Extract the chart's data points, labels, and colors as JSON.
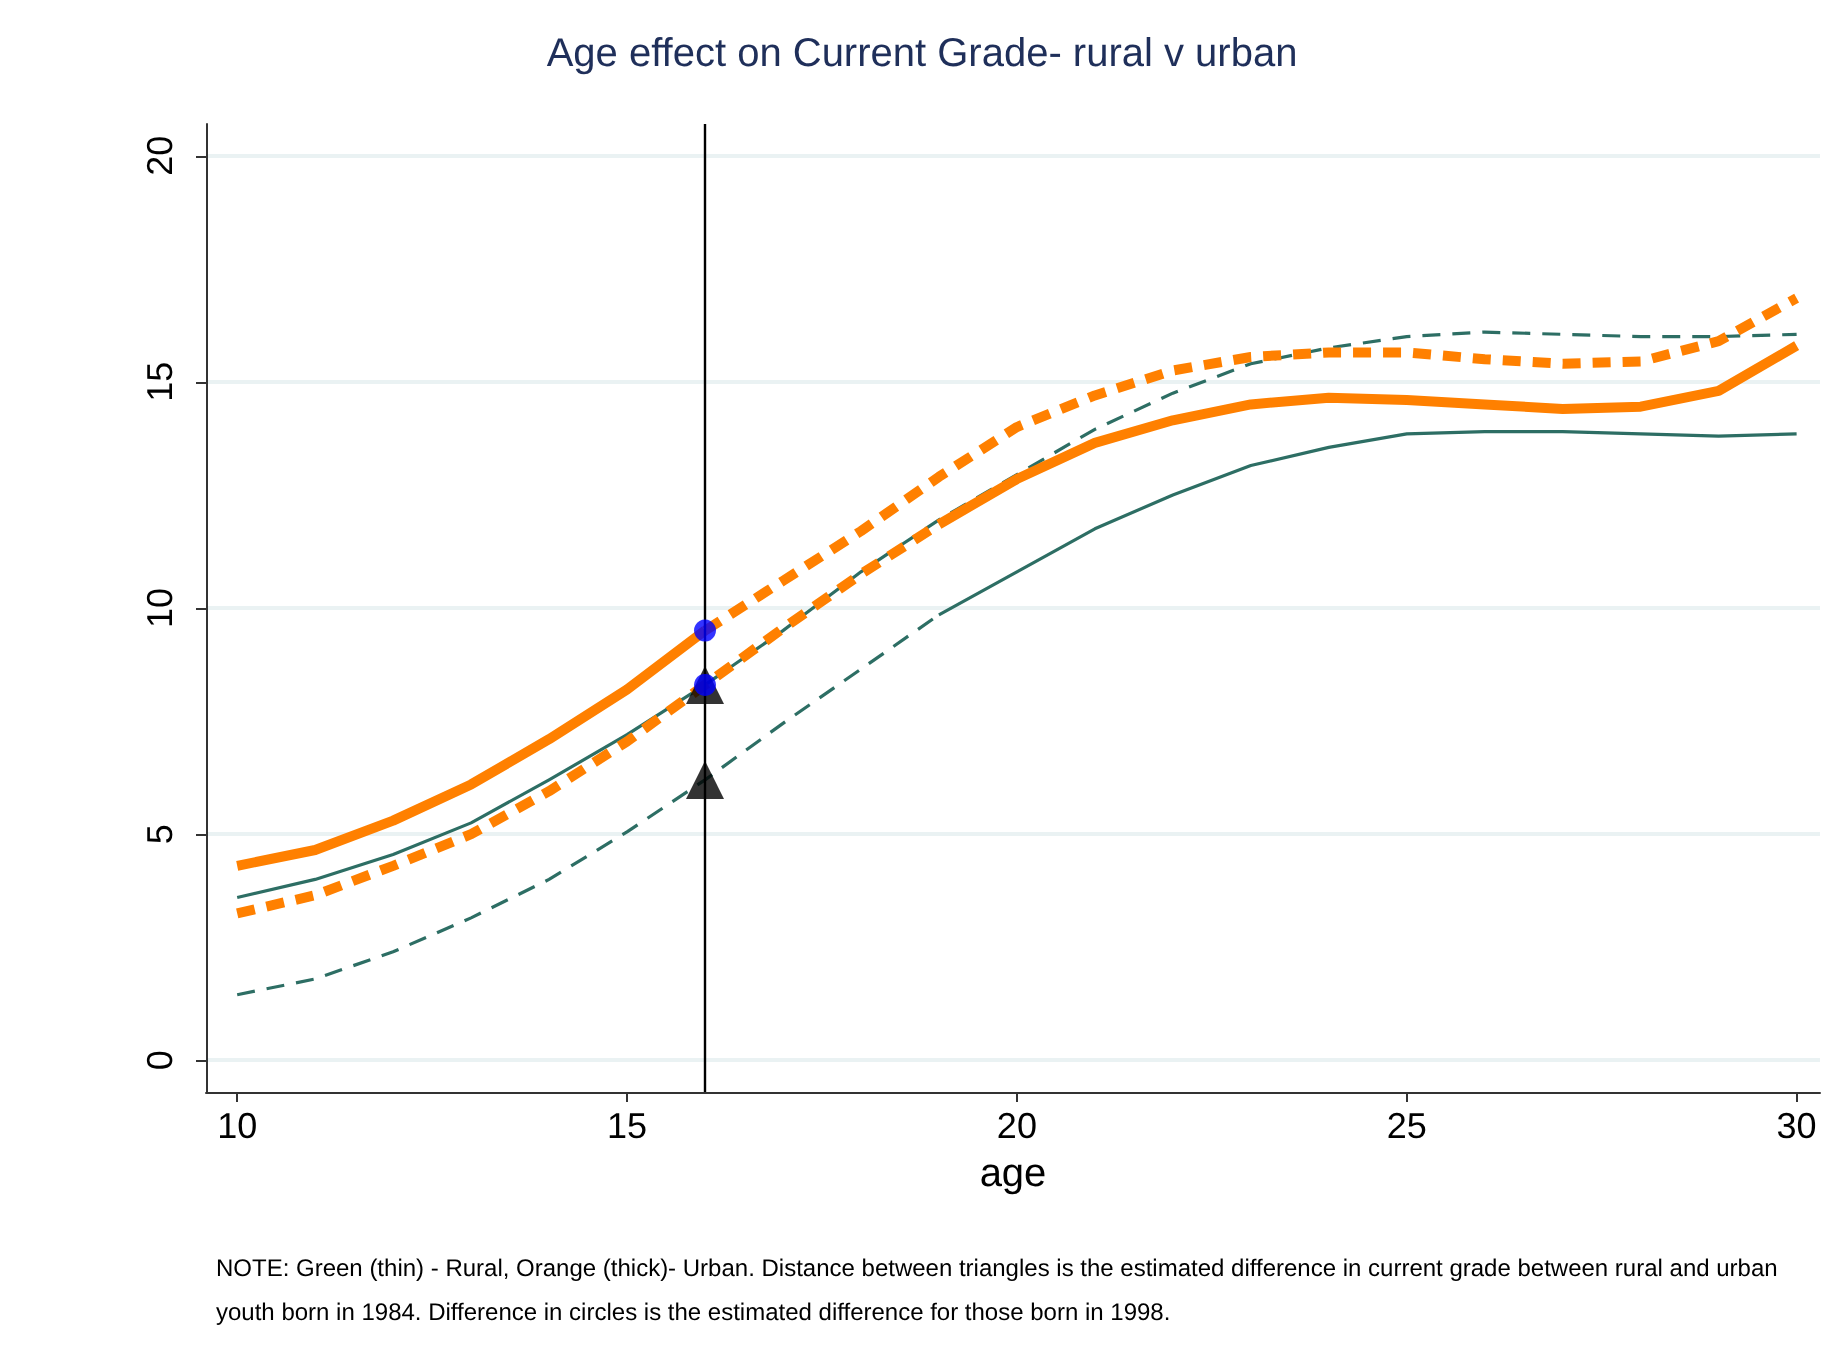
{
  "chart_data": {
    "type": "line",
    "title": "Age effect on Current Grade- rural v urban",
    "xlabel": "age",
    "annotations": [
      "NOTE: Green (thin) - Rural, Orange (thick)- Urban. Distance between triangles is the estimated difference in current grade between rural and urban youth born in 1984. Difference in circles is the estimated difference for those born in 1998."
    ],
    "xlim": [
      9.6,
      30.3
    ],
    "xticks": [
      10,
      15,
      20,
      25,
      30
    ],
    "ylim": [
      -0.7,
      20.7
    ],
    "yticks": [
      0,
      5,
      10,
      15,
      20
    ],
    "grid": "y",
    "marker": "none",
    "ref_lines": [
      {
        "axis": "x",
        "value": 16,
        "color": "#000000"
      }
    ],
    "series": [
      {
        "color": "#2d6e64",
        "line_style": "solid",
        "x": [
          10,
          11,
          12,
          13,
          14,
          15,
          16
        ],
        "values": [
          3.6,
          4.0,
          4.55,
          5.25,
          6.2,
          7.2,
          8.3
        ]
      },
      {
        "color": "#2d6e64",
        "line_style": "dashed",
        "x": [
          16,
          17,
          18,
          19,
          20,
          21,
          22,
          23,
          24,
          25,
          26,
          27,
          28,
          29,
          30
        ],
        "values": [
          8.3,
          9.5,
          10.8,
          11.95,
          12.95,
          13.95,
          14.75,
          15.4,
          15.75,
          16.0,
          16.1,
          16.05,
          16.0,
          16.0,
          16.05
        ]
      },
      {
        "color": "#2d6e64",
        "line_style": "dashed",
        "x": [
          10,
          11,
          12,
          13,
          14,
          15,
          16,
          17,
          18,
          19
        ],
        "values": [
          1.45,
          1.8,
          2.4,
          3.15,
          4.0,
          5.05,
          6.2,
          7.45,
          8.65,
          9.85
        ]
      },
      {
        "color": "#2d6e64",
        "line_style": "solid",
        "x": [
          19,
          20,
          21,
          22,
          23,
          24,
          25,
          26,
          27,
          28,
          29,
          30
        ],
        "values": [
          9.85,
          10.8,
          11.75,
          12.5,
          13.15,
          13.55,
          13.85,
          13.9,
          13.9,
          13.85,
          13.8,
          13.85
        ]
      },
      {
        "color": "#ff8000",
        "line_style": "solid",
        "x": [
          10,
          11,
          12,
          13,
          14,
          15,
          16
        ],
        "values": [
          4.3,
          4.65,
          5.3,
          6.1,
          7.1,
          8.2,
          9.5
        ]
      },
      {
        "color": "#ff8000",
        "line_style": "dashed",
        "x": [
          16,
          17,
          18,
          19,
          20,
          21,
          22,
          23,
          24,
          25,
          26,
          27,
          28,
          29,
          30
        ],
        "values": [
          9.5,
          10.6,
          11.7,
          12.9,
          14.0,
          14.7,
          15.25,
          15.55,
          15.65,
          15.65,
          15.5,
          15.4,
          15.45,
          15.9,
          16.85
        ]
      },
      {
        "color": "#ff8000",
        "line_style": "dashed",
        "x": [
          10,
          11,
          12,
          13,
          14,
          15,
          16,
          17,
          18,
          19
        ],
        "values": [
          3.25,
          3.65,
          4.3,
          5.0,
          5.95,
          7.05,
          8.3,
          9.55,
          10.75,
          11.85
        ]
      },
      {
        "color": "#ff8000",
        "line_style": "solid",
        "x": [
          19,
          20,
          21,
          22,
          23,
          24,
          25,
          26,
          27,
          28,
          29,
          30
        ],
        "values": [
          11.85,
          12.85,
          13.65,
          14.15,
          14.5,
          14.65,
          14.6,
          14.5,
          14.4,
          14.45,
          14.8,
          15.8
        ]
      },
      {
        "type": "scatter",
        "marker": "triangle",
        "color": "#000000",
        "x": [
          16,
          16
        ],
        "values": [
          6.2,
          8.3
        ]
      },
      {
        "type": "scatter",
        "marker": "circle",
        "color": "#0000ff",
        "x": [
          16,
          16
        ],
        "values": [
          9.5,
          8.3
        ]
      }
    ]
  }
}
